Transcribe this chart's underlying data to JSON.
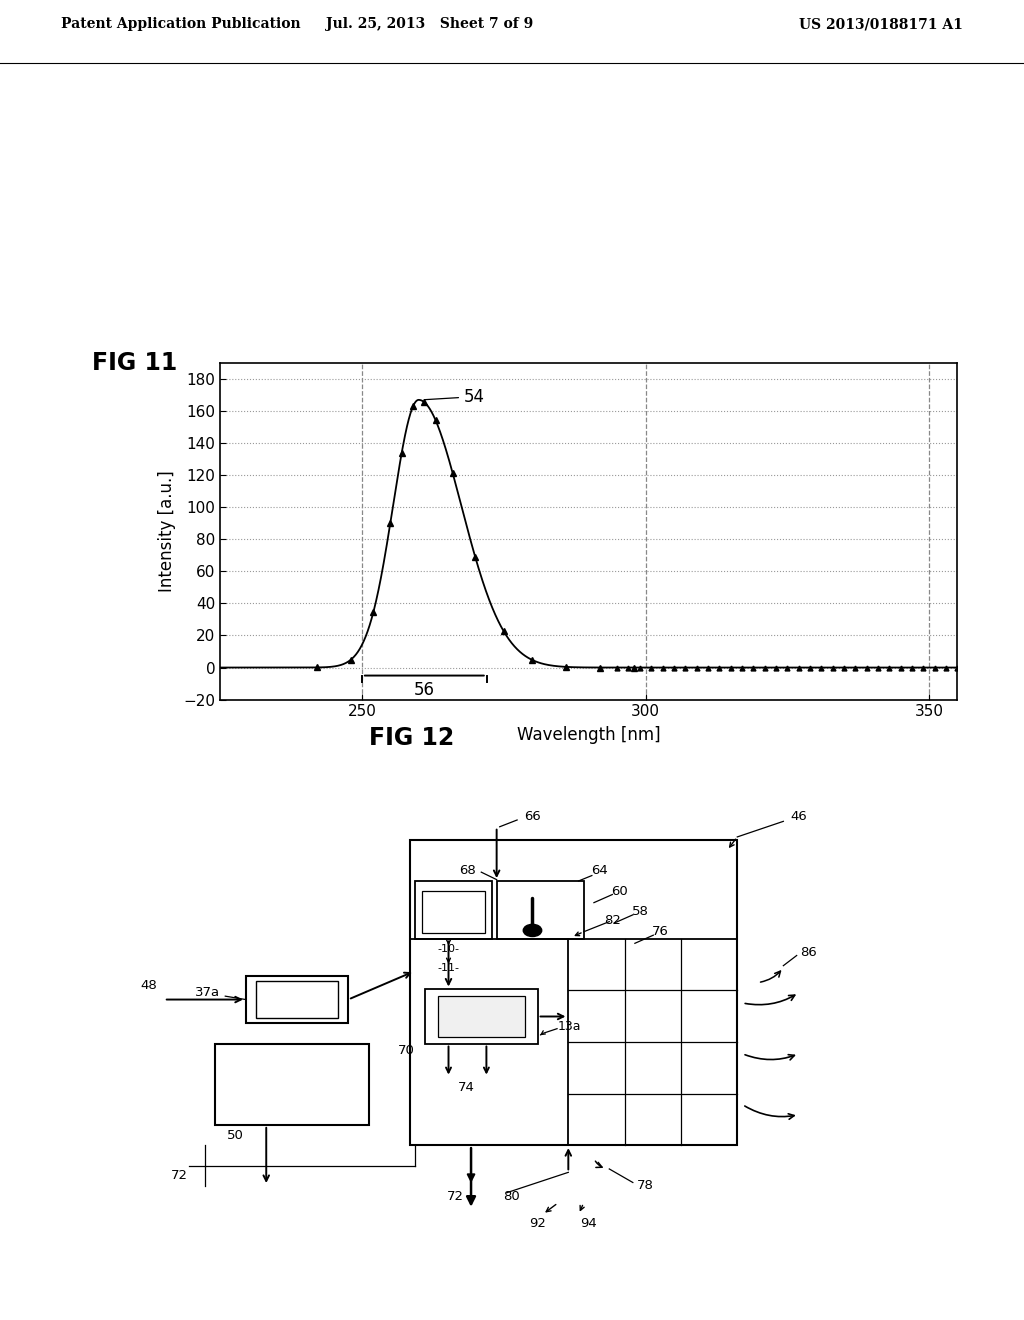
{
  "header_left": "Patent Application Publication",
  "header_mid": "Jul. 25, 2013   Sheet 7 of 9",
  "header_right": "US 2013/0188171 A1",
  "fig11_title": "FIG 11",
  "fig12_title": "FIG 12",
  "xlabel": "Wavelength [nm]",
  "ylabel": "Intensity [a.u.]",
  "xlim": [
    225,
    355
  ],
  "ylim": [
    -20,
    190
  ],
  "yticks": [
    -20,
    0,
    20,
    40,
    60,
    80,
    100,
    120,
    140,
    160,
    180
  ],
  "xticks": [
    250,
    300,
    350
  ],
  "peak_label": "54",
  "bracket_label": "56",
  "bg_color": "#ffffff",
  "line_color": "#000000",
  "grid_color": "#aaaaaa"
}
